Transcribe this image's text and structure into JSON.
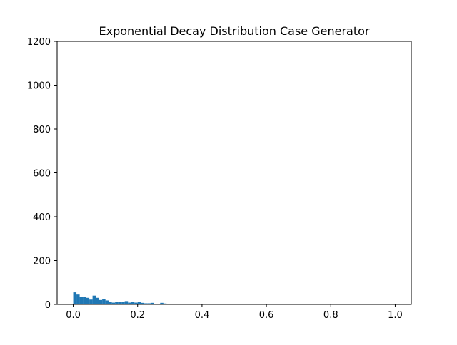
{
  "chart_data": {
    "type": "bar",
    "title": "Exponential Decay Distribution Case Generator",
    "xlabel": "",
    "ylabel": "",
    "xlim": [
      -0.05,
      1.05
    ],
    "ylim": [
      0,
      1200
    ],
    "x_ticks": [
      0.0,
      0.2,
      0.4,
      0.6,
      0.8,
      1.0
    ],
    "x_tick_labels": [
      "0.0",
      "0.2",
      "0.4",
      "0.6",
      "0.8",
      "1.0"
    ],
    "y_ticks": [
      0,
      200,
      400,
      600,
      800,
      1000,
      1200
    ],
    "y_tick_labels": [
      "0",
      "200",
      "400",
      "600",
      "800",
      "1000",
      "1200"
    ],
    "bin_width": 0.01,
    "bin_starts": [
      0.0,
      0.01,
      0.02,
      0.03,
      0.04,
      0.05,
      0.06,
      0.07,
      0.08,
      0.09,
      0.1,
      0.11,
      0.12,
      0.13,
      0.14,
      0.15,
      0.16,
      0.17,
      0.18,
      0.19,
      0.2,
      0.21,
      0.22,
      0.23,
      0.24,
      0.25,
      0.26,
      0.27,
      0.28,
      0.29,
      0.3
    ],
    "values": [
      55,
      45,
      35,
      35,
      30,
      22,
      40,
      30,
      20,
      25,
      18,
      12,
      8,
      12,
      12,
      12,
      15,
      8,
      10,
      8,
      10,
      7,
      5,
      5,
      7,
      3,
      3,
      7,
      4,
      3,
      2
    ],
    "bar_color": "#1f77b4",
    "grid": false
  }
}
